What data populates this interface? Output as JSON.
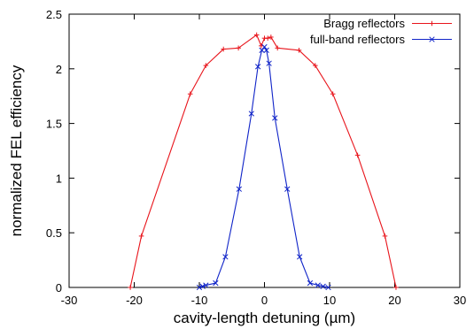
{
  "chart_data": {
    "type": "line",
    "xlabel": "cavity-length detuning (µm)",
    "ylabel": "normalized FEL efficiency",
    "xlim": [
      -30,
      30
    ],
    "ylim": [
      0,
      2.5
    ],
    "xticks": [
      "-30",
      "-20",
      "-10",
      "0",
      "10",
      "20",
      "30"
    ],
    "yticks": [
      "0",
      "0.5",
      "1",
      "1.5",
      "2",
      "2.5"
    ],
    "grid": false,
    "legend_position": "top-right",
    "series": [
      {
        "name": "Bragg reflectors",
        "color": "#e8141b",
        "marker": "plus",
        "x": [
          -20.6,
          -18.9,
          -11.4,
          -9.0,
          -6.3,
          -4.0,
          -1.2,
          -0.5,
          0.0,
          0.5,
          1.0,
          2.0,
          5.3,
          7.8,
          10.5,
          14.3,
          18.5,
          20.2
        ],
        "y": [
          0.0,
          0.47,
          1.77,
          2.03,
          2.18,
          2.19,
          2.31,
          2.21,
          2.28,
          2.28,
          2.29,
          2.19,
          2.17,
          2.03,
          1.77,
          1.21,
          0.47,
          0.0
        ]
      },
      {
        "name": "full-band reflectors",
        "color": "#1024c8",
        "marker": "cross",
        "x": [
          -10.0,
          -9.5,
          -9.0,
          -7.5,
          -6.0,
          -3.9,
          -2.0,
          -1.0,
          -0.4,
          0.0,
          0.3,
          0.7,
          1.6,
          3.5,
          5.4,
          7.0,
          8.2,
          9.0,
          9.8
        ],
        "y": [
          0.0,
          0.01,
          0.02,
          0.04,
          0.28,
          0.9,
          1.59,
          2.02,
          2.17,
          2.2,
          2.17,
          2.05,
          1.55,
          0.9,
          0.28,
          0.04,
          0.02,
          0.01,
          0.0
        ]
      }
    ]
  }
}
